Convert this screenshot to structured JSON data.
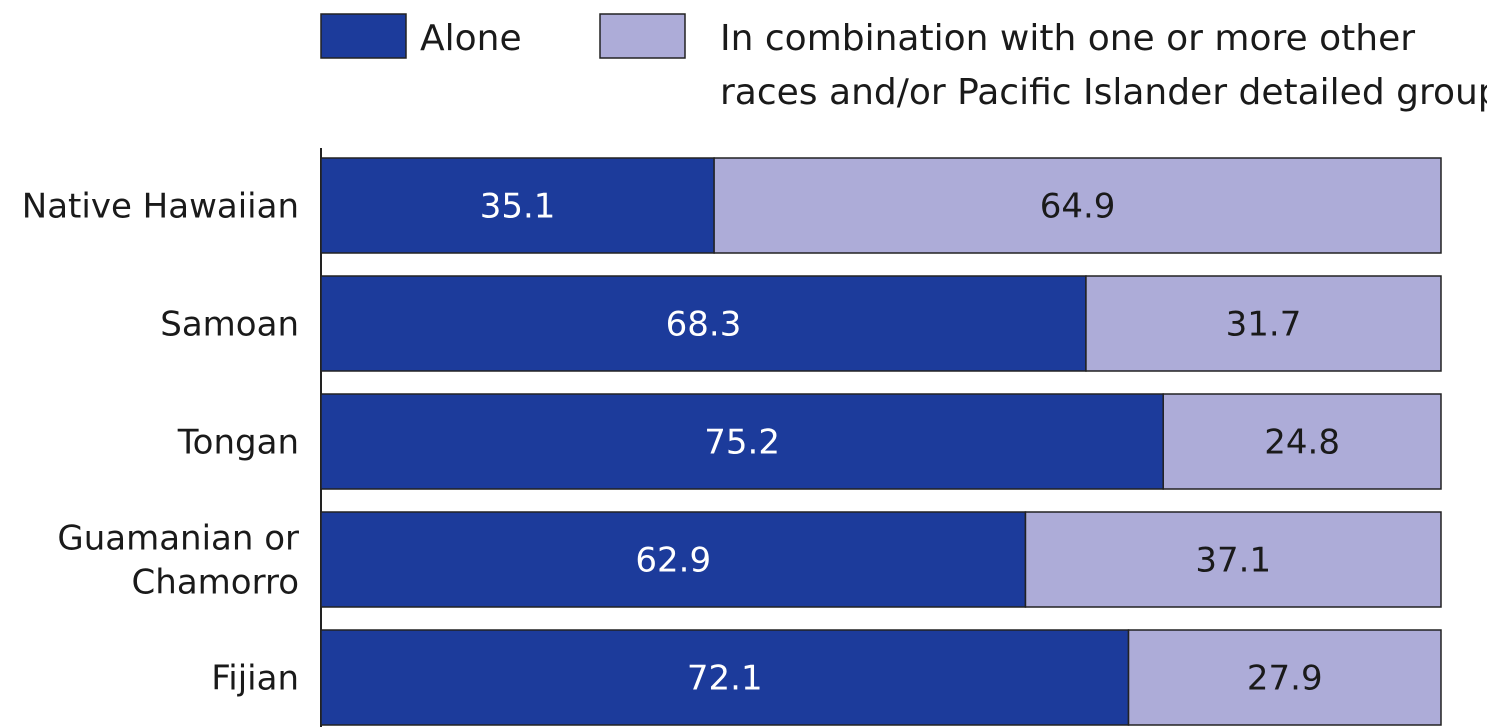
{
  "colors": {
    "alone": "#1c3b9b",
    "combination": "#adacd8",
    "bar_border": "#222222",
    "alone_text": "#ffffff",
    "combination_text": "#1a1a1a"
  },
  "chart_data": {
    "type": "bar",
    "orientation": "horizontal",
    "stacked": true,
    "title": "",
    "xlabel": "",
    "ylabel": "",
    "xlim": [
      0,
      100
    ],
    "grid": false,
    "legend_position": "top",
    "categories": [
      [
        "Native Hawaiian"
      ],
      [
        "Samoan"
      ],
      [
        "Tongan"
      ],
      [
        "Guamanian or",
        "Chamorro"
      ],
      [
        "Fijian"
      ]
    ],
    "series": [
      {
        "name": "Alone",
        "legend_lines": [
          "Alone"
        ],
        "values": [
          35.1,
          68.3,
          75.2,
          62.9,
          72.1
        ],
        "labels": [
          "35.1",
          "68.3",
          "75.2",
          "62.9",
          "72.1"
        ]
      },
      {
        "name": "In combination with one or more other races and/or Pacific Islander detailed groups",
        "legend_lines": [
          "In combination with one or more other",
          "races and/or Pacific Islander detailed groups"
        ],
        "values": [
          64.9,
          31.7,
          24.8,
          37.1,
          27.9
        ],
        "labels": [
          "64.9",
          "31.7",
          "24.8",
          "37.1",
          "27.9"
        ]
      }
    ]
  }
}
